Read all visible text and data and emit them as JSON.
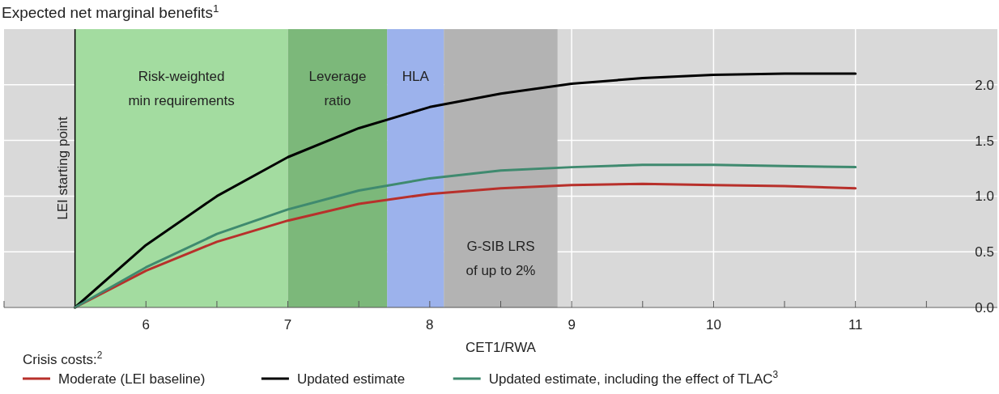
{
  "chart_data": {
    "type": "line",
    "title": "Expected net marginal benefits$^{1}$",
    "xlabel": "CET1/RWA",
    "legend_title": "Crisis costs:$^{2}$",
    "legend": "bottom",
    "grid": true,
    "x": [
      5.5,
      6,
      6.5,
      7,
      7.5,
      8,
      8.5,
      9,
      9.5,
      10,
      10.5,
      11
    ],
    "xlim": [
      5,
      12
    ],
    "xticks": [
      {
        "value": 5,
        "label": null
      },
      6,
      {
        "value": 6.5,
        "label": null
      },
      7,
      {
        "value": 7.5,
        "label": null
      },
      8,
      {
        "value": 8.5,
        "label": null
      },
      9,
      {
        "value": 9.5,
        "label": null
      },
      10,
      {
        "value": 10.5,
        "label": null
      },
      11,
      {
        "value": 11.5,
        "label": null
      }
    ],
    "ylim": [
      0,
      2.5
    ],
    "yticks": [
      {
        "value": 0,
        "label": "0.0"
      },
      {
        "value": 0.5,
        "label": "0.5"
      },
      {
        "value": 1,
        "label": "1.0"
      },
      {
        "value": 1.5,
        "label": "1.5"
      },
      {
        "value": 2,
        "label": "2.0"
      }
    ],
    "series": [
      {
        "name": "Moderate (LEI baseline)",
        "color": "#b8302b",
        "values": [
          0,
          0.33,
          0.59,
          0.78,
          0.93,
          1.02,
          1.07,
          1.1,
          1.11,
          1.1,
          1.09,
          1.07
        ]
      },
      {
        "name": "Updated estimate",
        "color": "#000000",
        "values": [
          0,
          0.56,
          1.0,
          1.35,
          1.61,
          1.8,
          1.92,
          2.01,
          2.06,
          2.09,
          2.1,
          2.1
        ]
      },
      {
        "name": "Updated estimate, including the effect of TLAC$^{3}$",
        "color": "#3f8a6f",
        "values": [
          0,
          0.36,
          0.66,
          0.88,
          1.05,
          1.16,
          1.23,
          1.26,
          1.28,
          1.28,
          1.27,
          1.26
        ]
      }
    ],
    "bands": [
      {
        "axis": "x",
        "from": 5.5,
        "to": 7.0,
        "label": "Risk-weighted\nmin requirements",
        "color": "#a3dca0"
      },
      {
        "axis": "x",
        "from": 7.0,
        "to": 7.7,
        "label": "Leverage\nratio",
        "color": "#7cb87a"
      },
      {
        "axis": "x",
        "from": 7.7,
        "to": 8.1,
        "label": "HLA",
        "color": "#9cb2ec"
      },
      {
        "axis": "x",
        "from": 8.1,
        "to": 8.9,
        "label": "G-SIB LRS\nof up to 2%",
        "color": "#b3b3b3"
      }
    ],
    "ref_lines": [
      {
        "axis": "x",
        "value": 5.5,
        "label": "LEI starting point",
        "color": "#000000"
      }
    ]
  }
}
